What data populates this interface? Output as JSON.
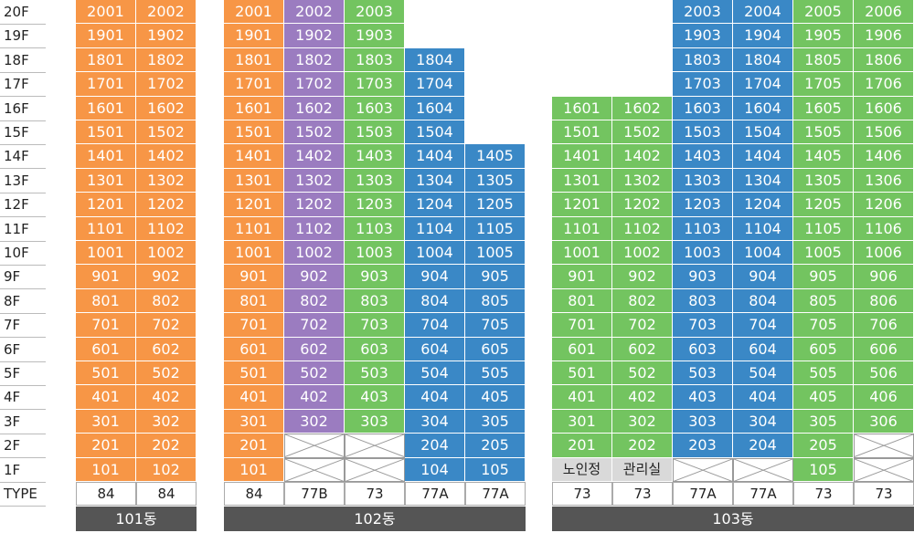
{
  "floors": [
    "20F",
    "19F",
    "18F",
    "17F",
    "16F",
    "15F",
    "14F",
    "13F",
    "12F",
    "11F",
    "10F",
    "9F",
    "8F",
    "7F",
    "6F",
    "5F",
    "4F",
    "3F",
    "2F",
    "1F"
  ],
  "type_label": "TYPE",
  "colors": {
    "orange": "#f79646",
    "purple": "#9b7cc0",
    "green": "#73c460",
    "blue": "#3a88c6",
    "gray": "#d9d9d9",
    "building_bar": "#555555"
  },
  "buildings": [
    {
      "name": "101동",
      "columns": [
        {
          "type": "84",
          "color": "orange",
          "units": [
            "2001",
            "1901",
            "1801",
            "1701",
            "1601",
            "1501",
            "1401",
            "1301",
            "1201",
            "1101",
            "1001",
            "901",
            "801",
            "701",
            "601",
            "501",
            "401",
            "301",
            "201",
            "101"
          ]
        },
        {
          "type": "84",
          "color": "orange",
          "units": [
            "2002",
            "1902",
            "1802",
            "1702",
            "1602",
            "1502",
            "1402",
            "1302",
            "1202",
            "1102",
            "1002",
            "902",
            "802",
            "702",
            "602",
            "502",
            "402",
            "302",
            "202",
            "102"
          ]
        }
      ]
    },
    {
      "name": "102동",
      "columns": [
        {
          "type": "84",
          "color": "orange",
          "units": [
            "2001",
            "1901",
            "1801",
            "1701",
            "1601",
            "1501",
            "1401",
            "1301",
            "1201",
            "1101",
            "1001",
            "901",
            "801",
            "701",
            "601",
            "501",
            "401",
            "301",
            "201",
            "101"
          ]
        },
        {
          "type": "77B",
          "color": "purple",
          "units": [
            "2002",
            "1902",
            "1802",
            "1702",
            "1602",
            "1502",
            "1402",
            "1302",
            "1202",
            "1102",
            "1002",
            "902",
            "802",
            "702",
            "602",
            "502",
            "402",
            "302",
            "X",
            "X"
          ]
        },
        {
          "type": "73",
          "color": "green",
          "units": [
            "2003",
            "1903",
            "1803",
            "1703",
            "1603",
            "1503",
            "1403",
            "1303",
            "1203",
            "1103",
            "1003",
            "903",
            "803",
            "703",
            "603",
            "503",
            "403",
            "303",
            "X",
            "X"
          ]
        },
        {
          "type": "77A",
          "color": "blue",
          "units": [
            "",
            "",
            "1804",
            "1704",
            "1604",
            "1504",
            "1404",
            "1304",
            "1204",
            "1104",
            "1004",
            "904",
            "804",
            "704",
            "604",
            "504",
            "404",
            "304",
            "204",
            "104"
          ]
        },
        {
          "type": "77A",
          "color": "blue",
          "units": [
            "",
            "",
            "",
            "",
            "",
            "",
            "1405",
            "1305",
            "1205",
            "1105",
            "1005",
            "905",
            "805",
            "705",
            "605",
            "505",
            "405",
            "305",
            "205",
            "105"
          ]
        }
      ]
    },
    {
      "name": "103동",
      "columns": [
        {
          "type": "73",
          "color": "green",
          "units": [
            "",
            "",
            "",
            "",
            "1601",
            "1501",
            "1401",
            "1301",
            "1201",
            "1101",
            "1001",
            "901",
            "801",
            "701",
            "601",
            "501",
            "401",
            "301",
            "201",
            "노인정"
          ]
        },
        {
          "type": "73",
          "color": "green",
          "units": [
            "",
            "",
            "",
            "",
            "1602",
            "1502",
            "1402",
            "1302",
            "1202",
            "1102",
            "1002",
            "902",
            "802",
            "702",
            "602",
            "502",
            "402",
            "302",
            "202",
            "관리실"
          ]
        },
        {
          "type": "77A",
          "color": "blue",
          "units": [
            "2003",
            "1903",
            "1803",
            "1703",
            "1603",
            "1503",
            "1403",
            "1303",
            "1203",
            "1103",
            "1003",
            "903",
            "803",
            "703",
            "603",
            "503",
            "403",
            "303",
            "203",
            "X"
          ]
        },
        {
          "type": "77A",
          "color": "blue",
          "units": [
            "2004",
            "1904",
            "1804",
            "1704",
            "1604",
            "1504",
            "1404",
            "1304",
            "1204",
            "1104",
            "1004",
            "904",
            "804",
            "704",
            "604",
            "504",
            "404",
            "304",
            "204",
            "X"
          ]
        },
        {
          "type": "73",
          "color": "green",
          "units": [
            "2005",
            "1905",
            "1805",
            "1705",
            "1605",
            "1505",
            "1405",
            "1305",
            "1205",
            "1105",
            "1005",
            "905",
            "805",
            "705",
            "605",
            "505",
            "405",
            "305",
            "205",
            "105"
          ]
        },
        {
          "type": "73",
          "color": "green",
          "units": [
            "2006",
            "1906",
            "1806",
            "1706",
            "1606",
            "1506",
            "1406",
            "1306",
            "1206",
            "1106",
            "1006",
            "906",
            "806",
            "706",
            "606",
            "506",
            "406",
            "306",
            "X",
            "X"
          ]
        }
      ]
    }
  ]
}
